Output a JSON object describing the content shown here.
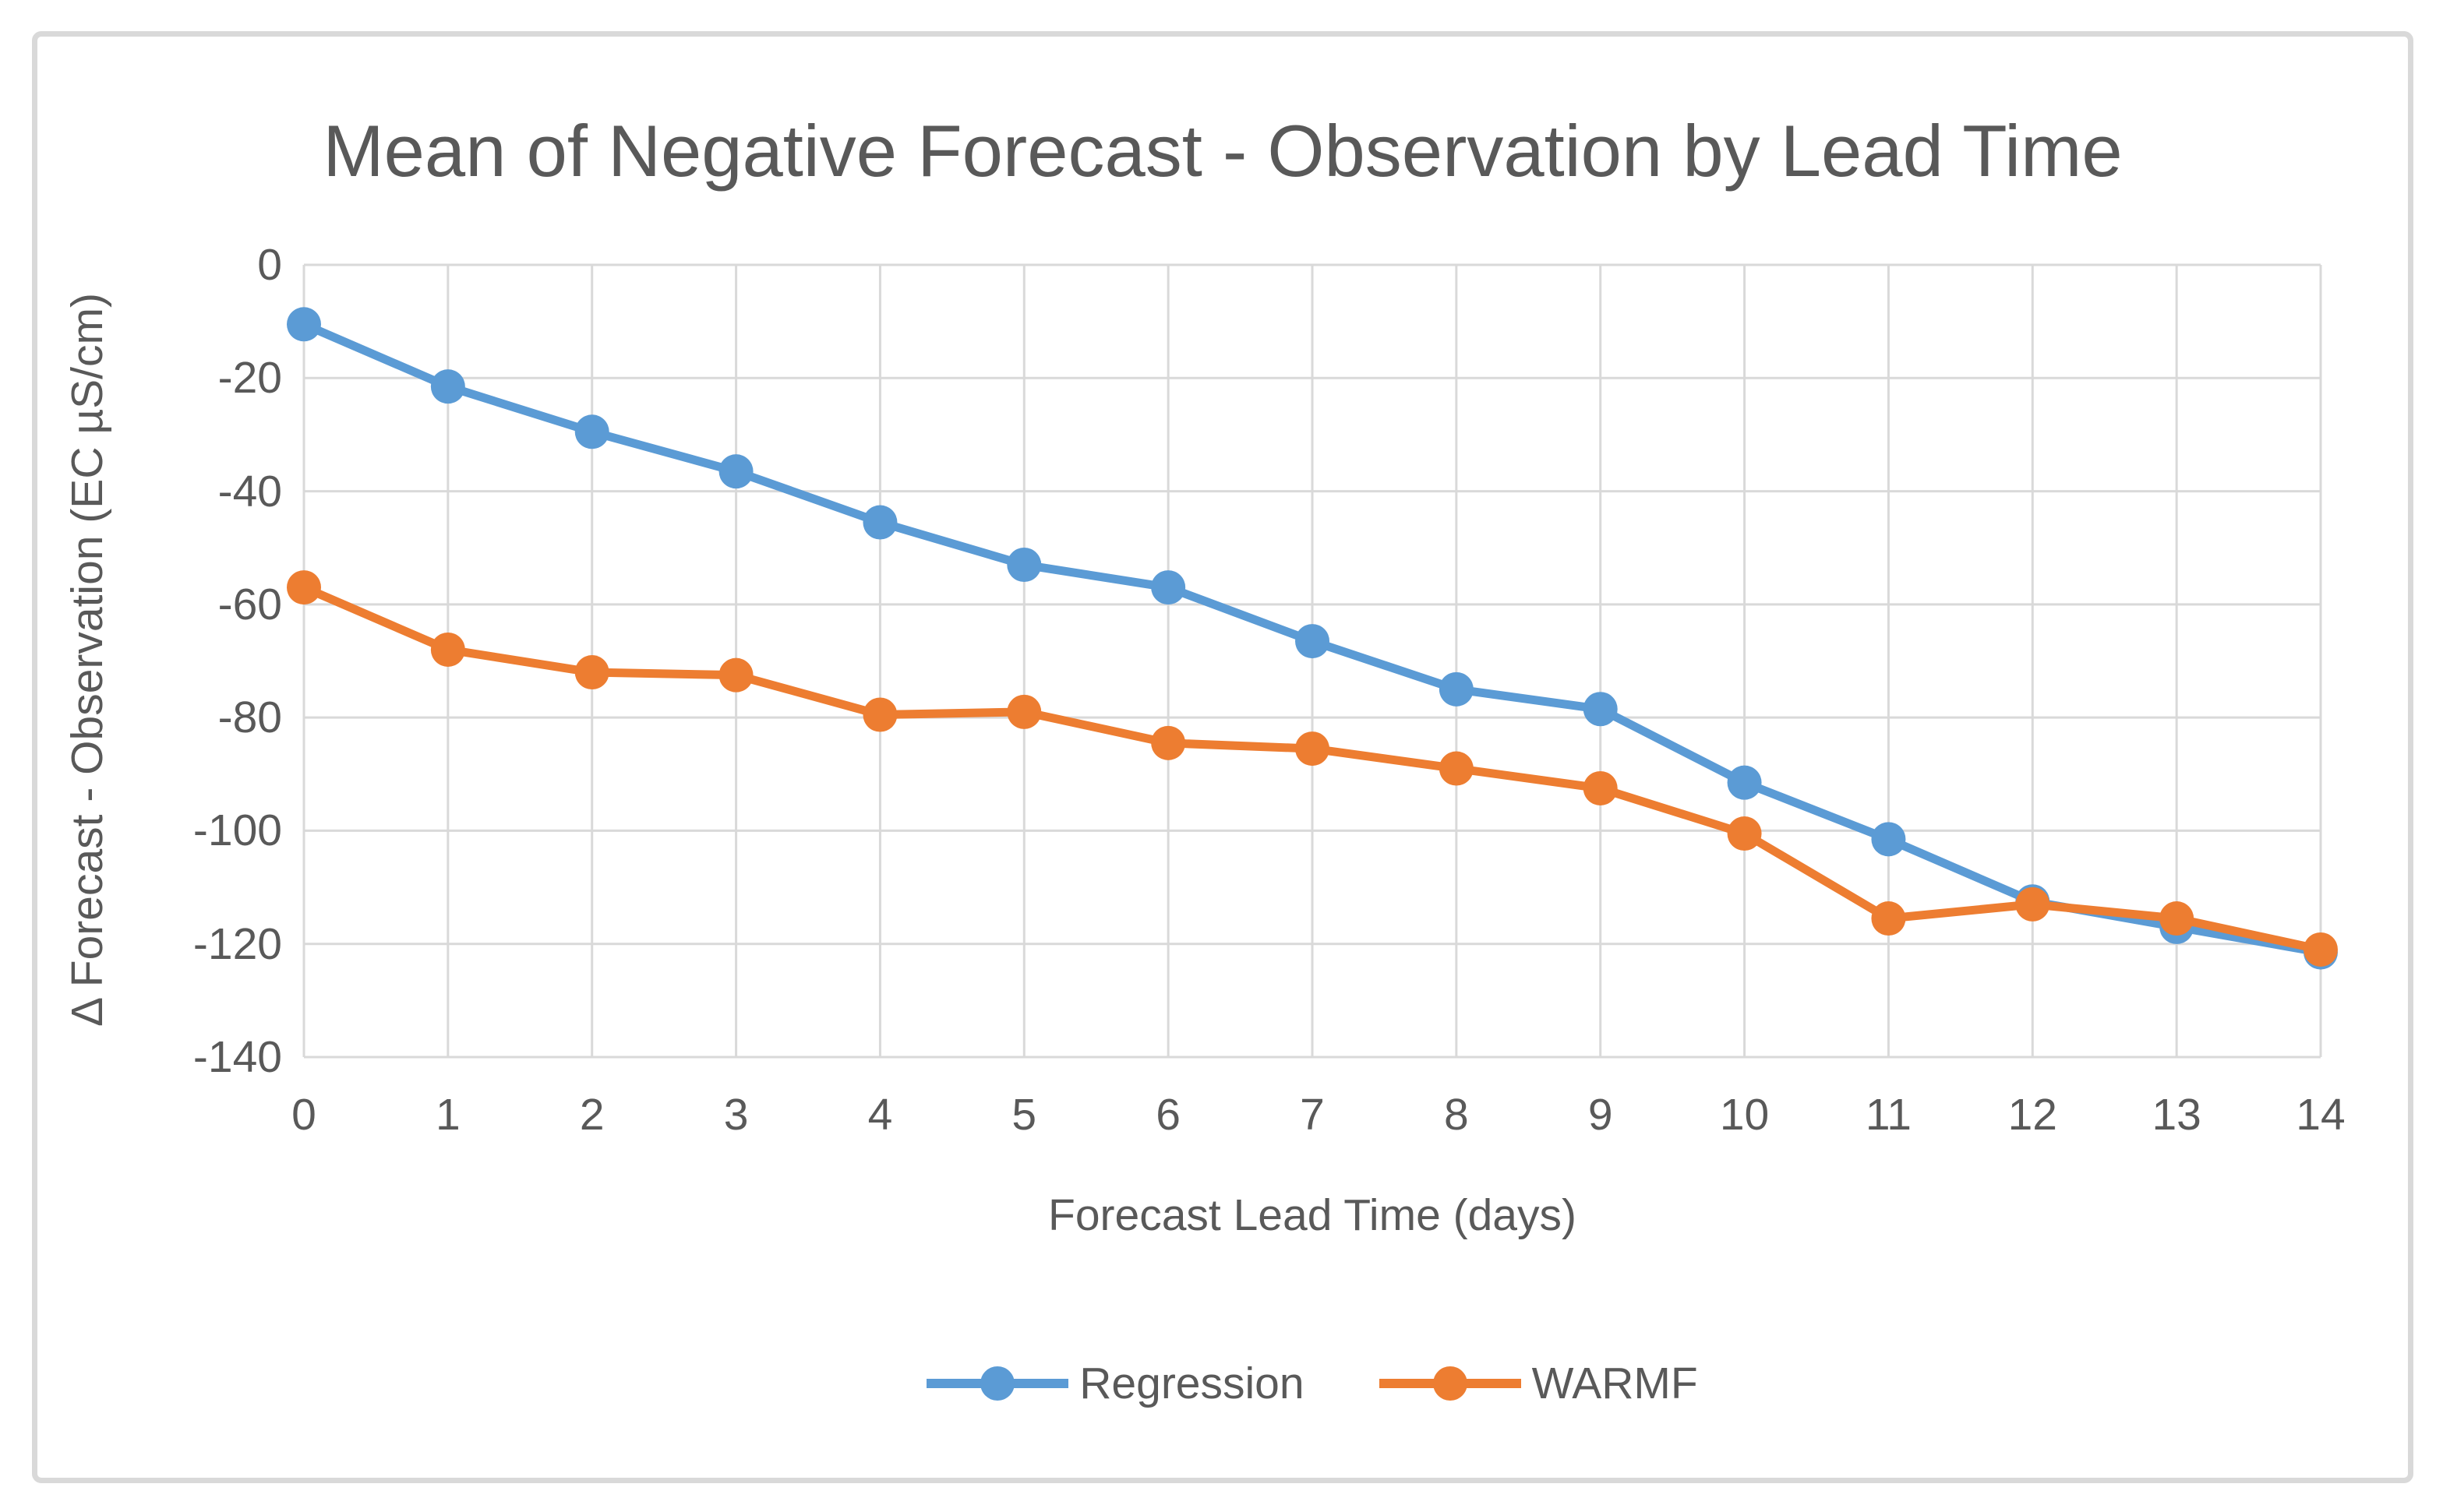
{
  "chart_data": {
    "type": "line",
    "title": "Mean of Negative Forecast - Observation by Lead Time",
    "xlabel": "Forecast Lead Time (days)",
    "ylabel": "Δ Forecast - Observation (EC µS/cm)",
    "x": [
      0,
      1,
      2,
      3,
      4,
      5,
      6,
      7,
      8,
      9,
      10,
      11,
      12,
      13,
      14
    ],
    "series": [
      {
        "name": "Regression",
        "color": "#5B9BD5",
        "values": [
          -10.5,
          -21.5,
          -29.5,
          -36.5,
          -45.5,
          -53,
          -57,
          -66.5,
          -75,
          -78.5,
          -91.5,
          -101.5,
          -112.5,
          -117,
          -121.5
        ]
      },
      {
        "name": "WARMF",
        "color": "#ED7D31",
        "values": [
          -57,
          -68,
          -72,
          -72.5,
          -79.5,
          -79,
          -84.5,
          -85.5,
          -89,
          -92.5,
          -100.5,
          -115.5,
          -113,
          -115.5,
          -121
        ]
      }
    ],
    "xlim": [
      0,
      14
    ],
    "ylim": [
      -140,
      0
    ],
    "xticks": [
      0,
      1,
      2,
      3,
      4,
      5,
      6,
      7,
      8,
      9,
      10,
      11,
      12,
      13,
      14
    ],
    "yticks": [
      0,
      -20,
      -40,
      -60,
      -80,
      -100,
      -120,
      -140
    ],
    "grid": true,
    "legend_position": "bottom"
  },
  "colors": {
    "background": "#FFFFFF",
    "frame_border": "#D9D9D9",
    "gridline": "#D9D9D9",
    "text": "#595959",
    "series_regression": "#5B9BD5",
    "series_warmf": "#ED7D31"
  }
}
